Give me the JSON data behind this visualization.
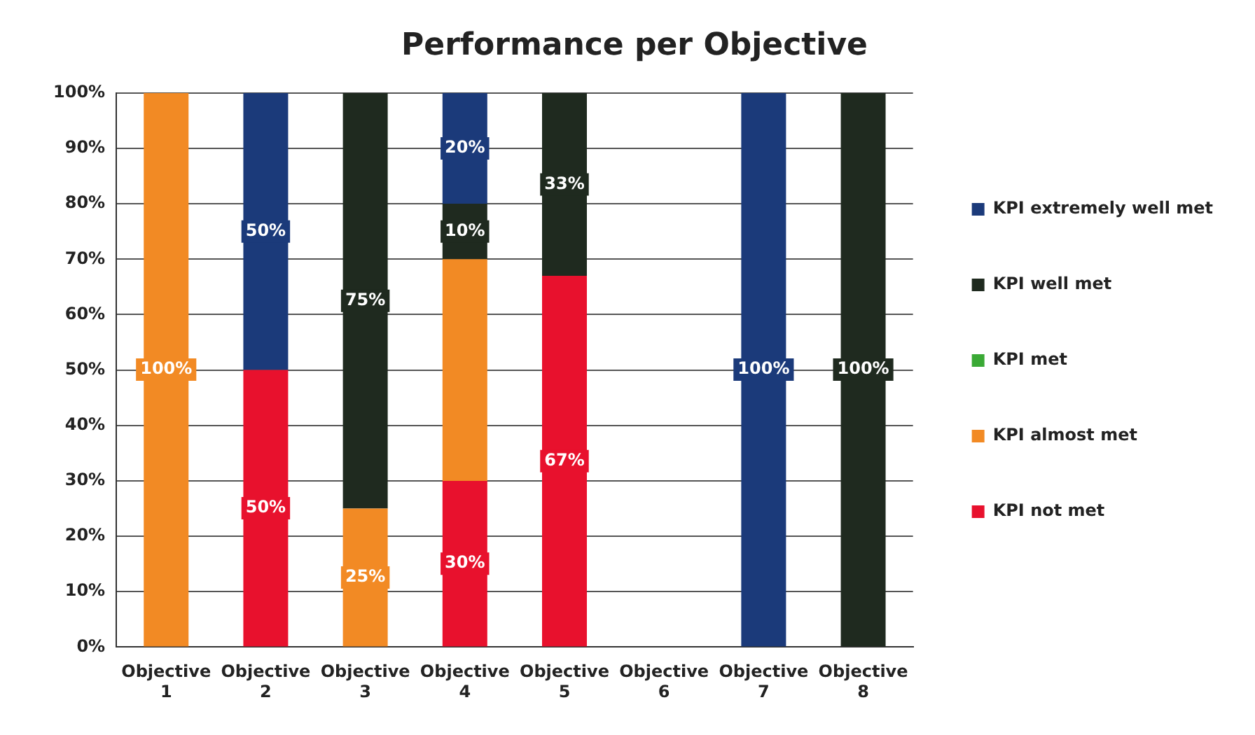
{
  "chart_data": {
    "type": "bar",
    "stacked": true,
    "title": "Performance per Objective",
    "categories": [
      "Objective 1",
      "Objective 2",
      "Objective 3",
      "Objective 4",
      "Objective 5",
      "Objective 6",
      "Objective 7",
      "Objective 8"
    ],
    "series": [
      {
        "name": "KPI not met",
        "color": "#e8112d",
        "values": [
          null,
          50,
          null,
          30,
          67,
          null,
          null,
          null
        ],
        "value_labels": [
          null,
          "50%",
          null,
          "30%",
          "67%",
          null,
          null,
          null
        ]
      },
      {
        "name": "KPI almost met",
        "color": "#f28a24",
        "values": [
          100,
          null,
          25,
          40,
          null,
          null,
          null,
          null
        ],
        "value_labels": [
          "100%",
          null,
          "25%",
          null,
          null,
          null,
          null,
          null
        ]
      },
      {
        "name": "KPI met",
        "color": "#3aa935",
        "values": [
          null,
          null,
          null,
          null,
          null,
          null,
          null,
          null
        ],
        "value_labels": [
          null,
          null,
          null,
          null,
          null,
          null,
          null,
          null
        ]
      },
      {
        "name": "KPI well met",
        "color": "#1f2a1f",
        "values": [
          null,
          null,
          75,
          10,
          33,
          null,
          null,
          100
        ],
        "value_labels": [
          null,
          null,
          "75%",
          "10%",
          "33%",
          null,
          null,
          "100%"
        ]
      },
      {
        "name": "KPI extremely well met",
        "color": "#1b3a7a",
        "values": [
          null,
          50,
          null,
          20,
          null,
          null,
          100,
          null
        ],
        "value_labels": [
          null,
          "50%",
          null,
          "20%",
          null,
          null,
          "100%",
          null
        ]
      }
    ],
    "ylim": [
      0,
      100
    ],
    "yticks": [
      {
        "value": 0,
        "label": "0%"
      },
      {
        "value": 10,
        "label": "10%"
      },
      {
        "value": 20,
        "label": "20%"
      },
      {
        "value": 30,
        "label": "30%"
      },
      {
        "value": 40,
        "label": "40%"
      },
      {
        "value": 50,
        "label": "50%"
      },
      {
        "value": 60,
        "label": "60%"
      },
      {
        "value": 70,
        "label": "70%"
      },
      {
        "value": 80,
        "label": "80%"
      },
      {
        "value": 90,
        "label": "90%"
      },
      {
        "value": 100,
        "label": "100%"
      }
    ],
    "grid": "y",
    "legend": "right"
  }
}
